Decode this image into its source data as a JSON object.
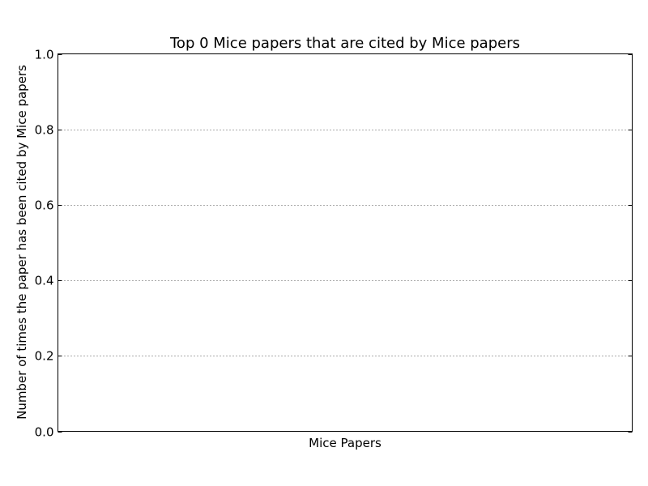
{
  "chart_data": {
    "type": "bar",
    "title": "Top 0 Mice papers that are cited by Mice papers",
    "xlabel": "Mice Papers",
    "ylabel": "Number of times the paper has been cited by Mice papers",
    "categories": [],
    "values": [],
    "ylim": [
      0.0,
      1.0
    ],
    "yticks": [
      "0.0",
      "0.2",
      "0.4",
      "0.6",
      "0.8",
      "1.0"
    ],
    "grid": "horizontal-dotted",
    "colors": {
      "grid": "#555555",
      "axes": "#000000"
    }
  }
}
